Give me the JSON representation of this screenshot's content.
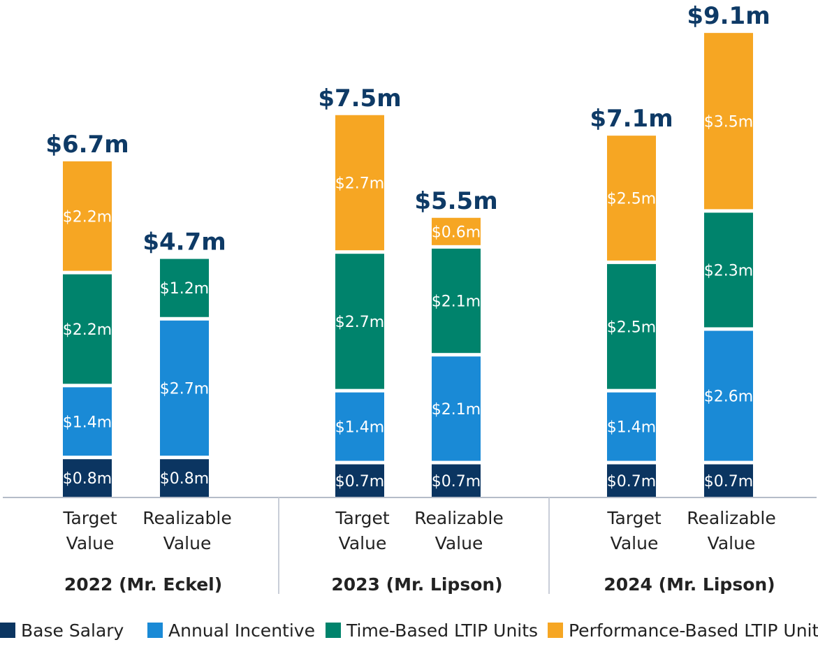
{
  "chart_data": {
    "type": "bar",
    "stacked": true,
    "colors": {
      "base_salary": "#0b3561",
      "annual_incentive": "#1a8ad6",
      "time_ltip": "#00836c",
      "perf_ltip": "#f6a623",
      "total_text": "#0e3a66"
    },
    "legend": [
      {
        "name": "Base Salary",
        "color": "#0b3561"
      },
      {
        "name": "Annual Incentive",
        "color": "#1a8ad6"
      },
      {
        "name": "Time-Based LTIP Units",
        "color": "#00836c"
      },
      {
        "name": "Performance-Based LTIP Units",
        "color": "#f6a623"
      }
    ],
    "legend_position": "bottom",
    "groups": [
      {
        "label": "2022 (Mr. Eckel)",
        "bars": [
          {
            "category_line1": "Target",
            "category_line2": "Value",
            "total": 6.7,
            "total_label": "$6.7m",
            "segments": [
              {
                "series": "Base Salary",
                "value": 0.8,
                "label": "$0.8m"
              },
              {
                "series": "Annual Incentive",
                "value": 1.4,
                "label": "$1.4m"
              },
              {
                "series": "Time-Based LTIP Units",
                "value": 2.2,
                "label": "$2.2m"
              },
              {
                "series": "Performance-Based LTIP Units",
                "value": 2.2,
                "label": "$2.2m"
              }
            ]
          },
          {
            "category_line1": "Realizable",
            "category_line2": "Value",
            "total": 4.7,
            "total_label": "$4.7m",
            "segments": [
              {
                "series": "Base Salary",
                "value": 0.8,
                "label": "$0.8m"
              },
              {
                "series": "Annual Incentive",
                "value": 2.7,
                "label": "$2.7m"
              },
              {
                "series": "Time-Based LTIP Units",
                "value": 1.2,
                "label": "$1.2m"
              }
            ]
          }
        ]
      },
      {
        "label": "2023 (Mr. Lipson)",
        "bars": [
          {
            "category_line1": "Target",
            "category_line2": "Value",
            "total": 7.5,
            "total_label": "$7.5m",
            "segments": [
              {
                "series": "Base Salary",
                "value": 0.7,
                "label": "$0.7m"
              },
              {
                "series": "Annual Incentive",
                "value": 1.4,
                "label": "$1.4m"
              },
              {
                "series": "Time-Based LTIP Units",
                "value": 2.7,
                "label": "$2.7m"
              },
              {
                "series": "Performance-Based LTIP Units",
                "value": 2.7,
                "label": "$2.7m"
              }
            ]
          },
          {
            "category_line1": "Realizable",
            "category_line2": "Value",
            "total": 5.5,
            "total_label": "$5.5m",
            "segments": [
              {
                "series": "Base Salary",
                "value": 0.7,
                "label": "$0.7m"
              },
              {
                "series": "Annual Incentive",
                "value": 2.1,
                "label": "$2.1m"
              },
              {
                "series": "Time-Based LTIP Units",
                "value": 2.1,
                "label": "$2.1m"
              },
              {
                "series": "Performance-Based LTIP Units",
                "value": 0.6,
                "label": "$0.6m"
              }
            ]
          }
        ]
      },
      {
        "label": "2024 (Mr. Lipson)",
        "bars": [
          {
            "category_line1": "Target",
            "category_line2": "Value",
            "total": 7.1,
            "total_label": "$7.1m",
            "segments": [
              {
                "series": "Base Salary",
                "value": 0.7,
                "label": "$0.7m"
              },
              {
                "series": "Annual Incentive",
                "value": 1.4,
                "label": "$1.4m"
              },
              {
                "series": "Time-Based LTIP Units",
                "value": 2.5,
                "label": "$2.5m"
              },
              {
                "series": "Performance-Based LTIP Units",
                "value": 2.5,
                "label": "$2.5m"
              }
            ]
          },
          {
            "category_line1": "Realizable",
            "category_line2": "Value",
            "total": 9.1,
            "total_label": "$9.1m",
            "segments": [
              {
                "series": "Base Salary",
                "value": 0.7,
                "label": "$0.7m"
              },
              {
                "series": "Annual Incentive",
                "value": 2.6,
                "label": "$2.6m"
              },
              {
                "series": "Time-Based LTIP Units",
                "value": 2.3,
                "label": "$2.3m"
              },
              {
                "series": "Performance-Based LTIP Units",
                "value": 3.5,
                "label": "$3.5m"
              }
            ]
          }
        ]
      }
    ]
  }
}
